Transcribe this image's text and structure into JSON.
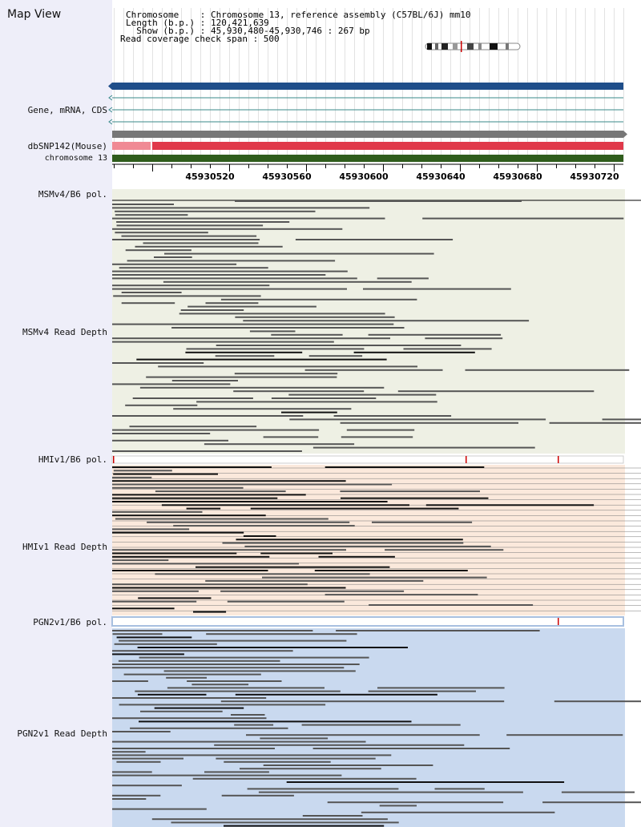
{
  "map_view": {
    "title": "Map View"
  },
  "info": {
    "chromosome": "Chromosome    : Chromosome 13, reference assembly (C57BL/6J) mm10",
    "length": "Length (b.p.) : 120,421,639",
    "show": "  Show (b.p.) : 45,930,480-45,930,746 : 267 bp",
    "coverage": "Read coverage check span : 500"
  },
  "tracks": {
    "gene": "Gene, mRNA, CDS",
    "dbsnp": "dbSNP142(Mouse)",
    "chromosome": "chromosome 13",
    "msm_pol": "MSMv4/B6 pol.",
    "msm_depth": "MSMv4 Read Depth",
    "hmi_pol": "HMIv1/B6 pol.",
    "hmi_depth": "HMIv1 Read Depth",
    "pgn_pol": "PGN2v1/B6 pol.",
    "pgn_depth": "PGN2v1 Read Depth"
  },
  "ruler": {
    "ticks": [
      "45930520",
      "45930560",
      "45930600",
      "45930640",
      "45930680",
      "45930720"
    ]
  },
  "colors": {
    "panel": "#eeeef9",
    "gene_bar": "#1f4e8a",
    "snp_pink": "#f08a94",
    "snp_red": "#e0394a",
    "chrom_green": "#2f5d1c",
    "msm_bg": "#eef0e4",
    "hmi_bg": "#fbe9dc",
    "pgn_bg": "#c9d9ef",
    "read_gray": "#555555",
    "read_dark": "#111111"
  }
}
